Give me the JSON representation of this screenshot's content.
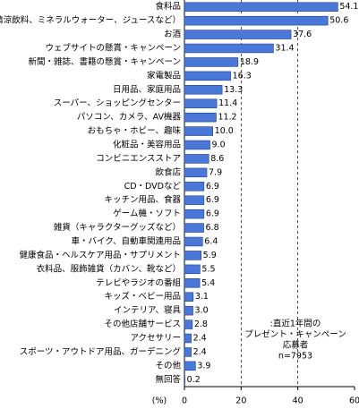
{
  "chart_data": {
    "type": "hbar",
    "categories": [
      "食料品",
      "飲料（清涼飲料、ミネラルウォーター、ジュースなど）",
      "お酒",
      "ウェブサイトの懸賞・キャンペーン",
      "新聞・雑誌、書籍の懸賞・キャンペーン",
      "家電製品",
      "日用品、家庭用品",
      "スーパー、ショッピングセンター",
      "パソコン、カメラ、AV機器",
      "おもちゃ・ホビー、趣味",
      "化粧品・美容用品",
      "コンビニエンスストア",
      "飲食店",
      "CD・DVDなど",
      "キッチン用品、食器",
      "ゲーム機・ソフト",
      "雑貨（キャラクターグッズなど）",
      "車・バイク、自動車関連用品",
      "健康食品・ヘルスケア用品・サプリメント",
      "衣料品、服飾雑貨（カバン、靴など）",
      "テレビやラジオの番組",
      "キッズ・ベビー用品",
      "インテリア、寝具",
      "その他店舗サービス",
      "アクセサリー",
      "スポーツ・アウトドア用品、ガーデニング",
      "その他",
      "無回答"
    ],
    "values": [
      54.1,
      50.6,
      37.6,
      31.4,
      18.9,
      16.3,
      13.3,
      11.4,
      11.2,
      10.0,
      9.0,
      8.6,
      7.9,
      6.9,
      6.9,
      6.9,
      6.8,
      6.4,
      5.9,
      5.5,
      5.4,
      3.1,
      3.0,
      2.8,
      2.4,
      2.4,
      3.9,
      0.2
    ],
    "value_labels": [
      "54.1",
      "50.6",
      "37.6",
      "31.4",
      "18.9",
      "16.3",
      "13.3",
      "11.4",
      "11.2",
      "10.0",
      "9.0",
      "8.6",
      "7.9",
      "6.9",
      "6.9",
      "6.9",
      "6.8",
      "6.4",
      "5.9",
      "5.5",
      "5.4",
      "3.1",
      "3.0",
      "2.8",
      "2.4",
      "2.4",
      "3.9",
      "0.2"
    ],
    "color": "#4a78d8",
    "xlim": [
      0,
      60
    ],
    "xticks": [
      0,
      20,
      40,
      60
    ],
    "x_label": "(%)",
    "grid": true,
    "annotation": [
      ":直近1年間の",
      "プレゼント・キャンペーン",
      "応募者",
      "n=7953"
    ]
  }
}
